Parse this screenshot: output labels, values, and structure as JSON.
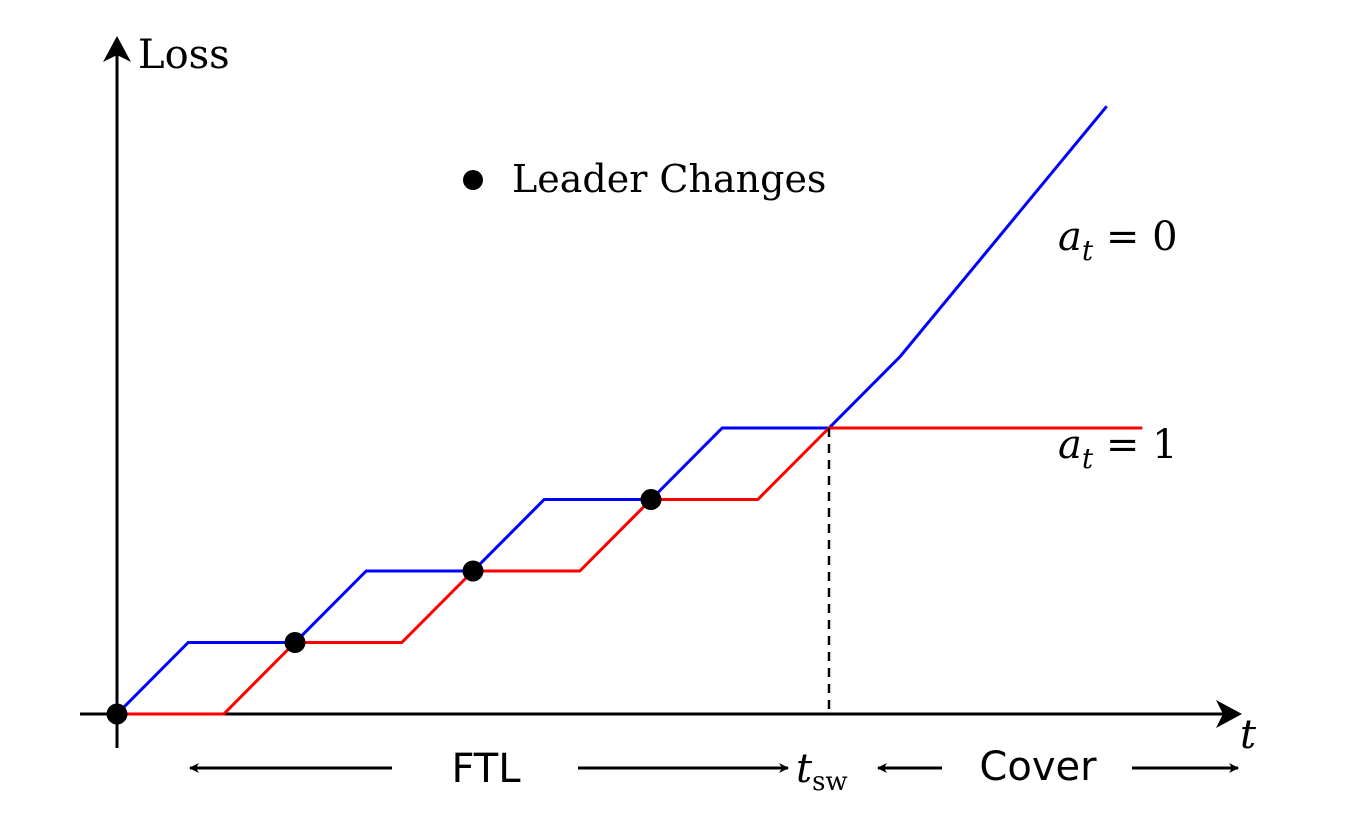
{
  "axes": {
    "y_label": "Loss",
    "x_label": "t"
  },
  "legend": {
    "label": "Leader Changes"
  },
  "curves": {
    "a0": {
      "name": "a",
      "subscript": "t",
      "rest": " = 0",
      "color": "#0000ff"
    },
    "a1": {
      "name": "a",
      "subscript": "t",
      "rest": " = 1",
      "color": "#ff0000"
    }
  },
  "phases": {
    "ftl": "FTL",
    "switch_main": "t",
    "switch_sub": "sw",
    "cover": "Cover"
  },
  "chart_data": {
    "type": "line",
    "series": [
      {
        "name": "a_t = 0",
        "color": "#0000ff",
        "x": [
          0,
          1,
          2.5,
          3.5,
          5,
          6,
          7.5,
          8.5,
          10,
          11,
          13.9
        ],
        "y": [
          0,
          1,
          1,
          2,
          2,
          3,
          3,
          4,
          4,
          5,
          8.5
        ]
      },
      {
        "name": "a_t = 1",
        "color": "#ff0000",
        "x": [
          0,
          1.5,
          2.5,
          4,
          5,
          6.5,
          7.5,
          9,
          10,
          11,
          14.4
        ],
        "y": [
          0,
          0,
          1,
          1,
          2,
          2,
          3,
          3,
          4,
          4,
          4
        ]
      }
    ],
    "leader_changes": {
      "x": [
        0,
        2.5,
        5,
        7.5
      ],
      "y": [
        0,
        1,
        2,
        3
      ]
    },
    "switch_time": 10,
    "grid": false
  }
}
